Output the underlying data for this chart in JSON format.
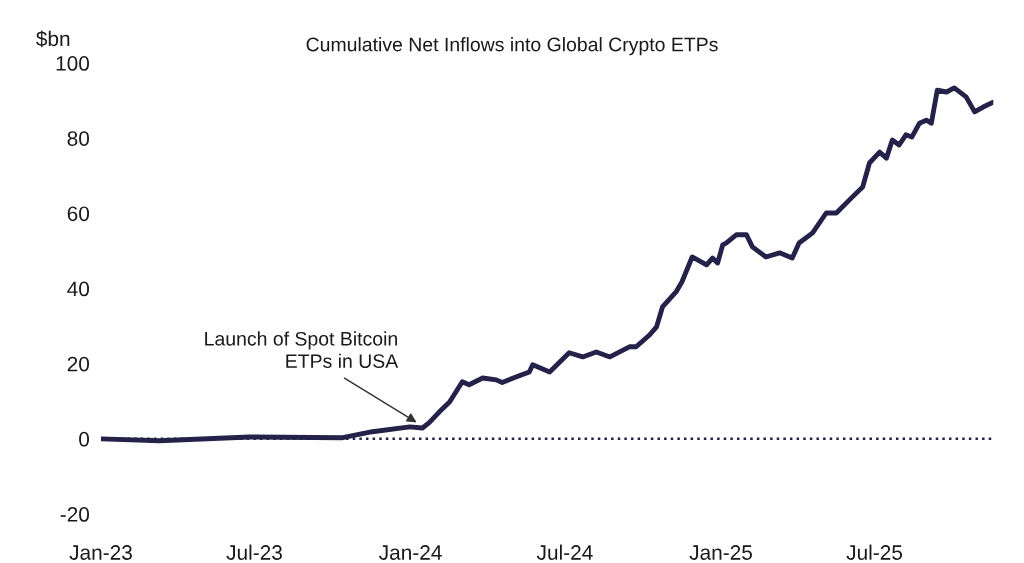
{
  "chart_data": {
    "type": "line",
    "title": "Cumulative Net Inflows into Global Crypto ETPs",
    "ylabel": "$bn",
    "x": [
      "2023-01-01",
      "2023-03-11",
      "2023-06-25",
      "2023-10-13",
      "2023-11-17",
      "2023-12-31",
      "2024-01-15",
      "2024-01-23",
      "2024-02-04",
      "2024-02-16",
      "2024-03-02",
      "2024-03-10",
      "2024-03-26",
      "2024-04-11",
      "2024-04-18",
      "2024-05-05",
      "2024-05-20",
      "2024-05-24",
      "2024-06-13",
      "2024-07-06",
      "2024-07-22",
      "2024-08-07",
      "2024-08-23",
      "2024-09-15",
      "2024-09-23",
      "2024-10-09",
      "2024-10-17",
      "2024-10-24",
      "2024-11-09",
      "2024-11-16",
      "2024-11-28",
      "2024-12-15",
      "2024-12-22",
      "2024-12-28",
      "2025-01-03",
      "2025-01-07",
      "2025-01-19",
      "2025-01-31",
      "2025-02-07",
      "2025-02-23",
      "2025-03-11",
      "2025-03-26",
      "2025-04-03",
      "2025-04-19",
      "2025-05-05",
      "2025-05-17",
      "2025-06-05",
      "2025-06-17",
      "2025-06-25",
      "2025-07-07",
      "2025-07-15",
      "2025-07-22",
      "2025-07-30",
      "2025-08-07",
      "2025-08-14",
      "2025-08-23",
      "2025-08-31",
      "2025-09-06",
      "2025-09-13",
      "2025-09-24",
      "2025-10-03",
      "2025-10-17",
      "2025-10-27",
      "2025-11-06",
      "2025-11-18"
    ],
    "series": [
      {
        "color": "#25224a",
        "values": [
          0,
          -0.5,
          0.5,
          0.3,
          1.9,
          3.2,
          2.9,
          4.3,
          7.2,
          9.8,
          15.2,
          14.4,
          16.2,
          15.7,
          15,
          16.5,
          17.8,
          19.7,
          17.8,
          22.9,
          21.8,
          23.1,
          21.8,
          24.5,
          24.5,
          27.7,
          29.8,
          35.1,
          39.1,
          41.8,
          48.4,
          46.3,
          48.1,
          46.8,
          51.6,
          52.1,
          54.3,
          54.3,
          51.1,
          48.4,
          49.5,
          48.1,
          52.1,
          54.8,
          60.1,
          60.1,
          64.4,
          67,
          73.4,
          76.3,
          74.7,
          79.5,
          78.2,
          80.9,
          80.3,
          84,
          84.8,
          84,
          92.8,
          92.3,
          93.4,
          91,
          87,
          88.3,
          89.6
        ]
      }
    ],
    "xlim": [
      "2023-01-01",
      "2025-11-18"
    ],
    "ylim": [
      -20,
      100
    ],
    "yticks": [
      -20,
      0,
      20,
      40,
      60,
      80,
      100
    ],
    "xticks": [
      {
        "value": "2023-01-01",
        "label": "Jan-23"
      },
      {
        "value": "2023-07-01",
        "label": "Jul-23"
      },
      {
        "value": "2024-01-01",
        "label": "Jan-24"
      },
      {
        "value": "2024-07-01",
        "label": "Jul-24"
      },
      {
        "value": "2025-01-01",
        "label": "Jan-25"
      },
      {
        "value": "2025-07-01",
        "label": "Jul-25"
      }
    ],
    "ref_lines": [
      {
        "axis": "y",
        "value": 0,
        "color": "#25224a",
        "line_style": "dotted"
      }
    ],
    "annotations": [
      {
        "text": "Launch of Spot Bitcoin\nETPs in USA",
        "x": "2024-01-11",
        "y": 4
      }
    ],
    "grid": false,
    "legend": false,
    "line_style": "solid",
    "marker": "none"
  }
}
